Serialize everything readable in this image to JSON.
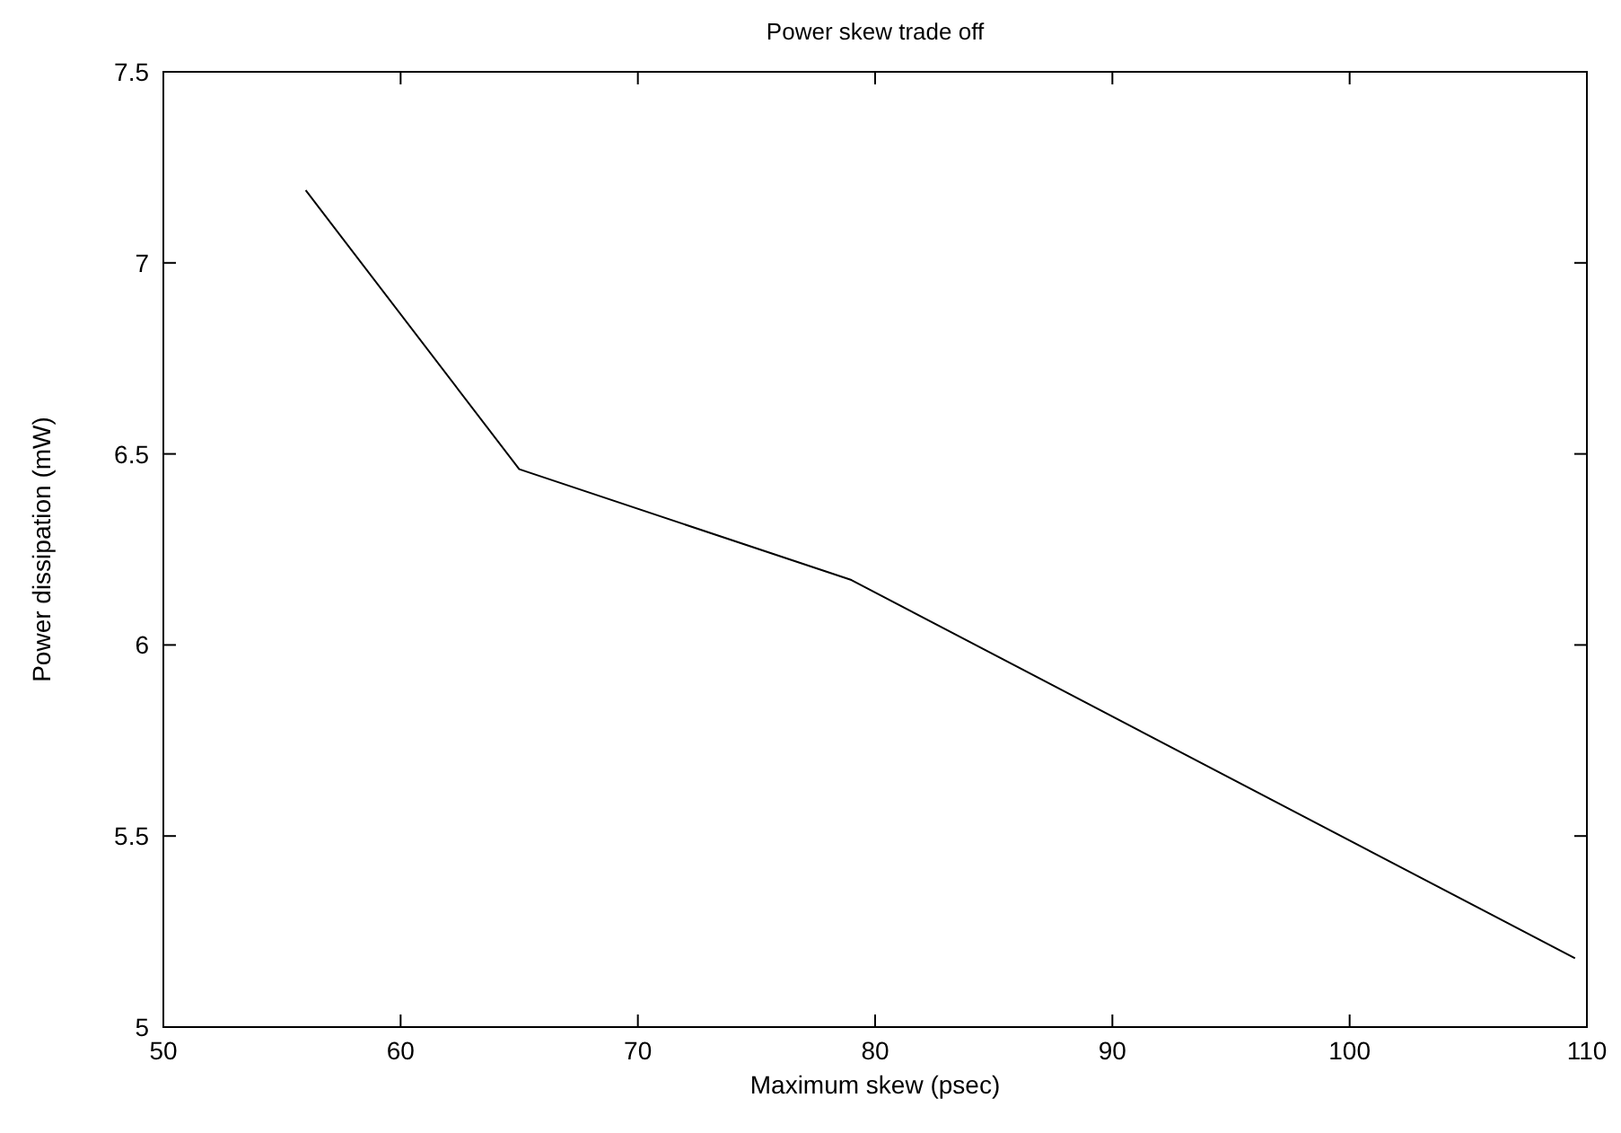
{
  "chart_data": {
    "type": "line",
    "title": "Power skew trade off",
    "xlabel": "Maximum skew (psec)",
    "ylabel": "Power dissipation (mW)",
    "x": [
      56,
      65,
      79,
      109.5
    ],
    "series": [
      {
        "color": "#000000",
        "values": [
          7.19,
          6.46,
          6.17,
          5.18
        ]
      }
    ],
    "xlim": [
      50,
      110
    ],
    "xticks": [
      50,
      60,
      70,
      80,
      90,
      100,
      110
    ],
    "ylim": [
      5,
      7.5
    ],
    "yticks": [
      5,
      5.5,
      6,
      6.5,
      7,
      7.5
    ],
    "grid": false,
    "marker": "none",
    "line_style": "solid"
  }
}
